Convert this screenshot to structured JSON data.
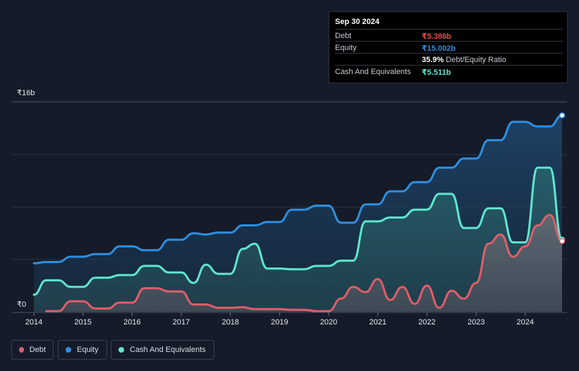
{
  "tooltip": {
    "date": "Sep 30 2024",
    "debt_label": "Debt",
    "debt_value": "₹5.386b",
    "equity_label": "Equity",
    "equity_value": "₹15.002b",
    "ratio_value": "35.9%",
    "ratio_label": "Debt/Equity Ratio",
    "cash_label": "Cash And Equivalents",
    "cash_value": "₹5.511b"
  },
  "legend": {
    "debt": "Debt",
    "equity": "Equity",
    "cash": "Cash And Equivalents"
  },
  "colors": {
    "debt": "#e05d6a",
    "equity": "#2e8fe0",
    "cash": "#5ee6cf",
    "debt_value_text": "#e84c4c",
    "equity_value_text": "#2e8fe0",
    "cash_value_text": "#5ee6cf"
  },
  "chart_data": {
    "type": "area",
    "ylabel_top": "₹16b",
    "ylabel_bottom": "₹0",
    "ylim": [
      0,
      16
    ],
    "xlim": [
      2014.0,
      2024.85
    ],
    "x_ticks": [
      "2014",
      "2015",
      "2016",
      "2017",
      "2018",
      "2019",
      "2020",
      "2021",
      "2022",
      "2023",
      "2024"
    ],
    "series": [
      {
        "name": "Equity",
        "x": [
          2014.0,
          2014.25,
          2014.5,
          2014.75,
          2015.0,
          2015.25,
          2015.5,
          2015.75,
          2016.0,
          2016.25,
          2016.5,
          2016.75,
          2017.0,
          2017.25,
          2017.5,
          2017.75,
          2018.0,
          2018.25,
          2018.5,
          2018.75,
          2019.0,
          2019.25,
          2019.5,
          2019.75,
          2020.0,
          2020.25,
          2020.5,
          2020.75,
          2021.0,
          2021.25,
          2021.5,
          2021.75,
          2022.0,
          2022.25,
          2022.5,
          2022.75,
          2023.0,
          2023.25,
          2023.5,
          2023.75,
          2024.0,
          2024.25,
          2024.5,
          2024.75
        ],
        "values": [
          3.7,
          3.8,
          3.8,
          4.2,
          4.2,
          4.4,
          4.4,
          5.0,
          5.0,
          4.7,
          4.7,
          5.5,
          5.5,
          6.0,
          5.9,
          6.05,
          6.05,
          6.6,
          6.6,
          6.85,
          6.85,
          7.8,
          7.8,
          8.1,
          8.1,
          6.8,
          6.8,
          8.2,
          8.2,
          9.2,
          9.2,
          9.9,
          9.9,
          11.0,
          11.0,
          11.7,
          11.7,
          13.1,
          13.1,
          14.5,
          14.5,
          14.15,
          14.15,
          15.0
        ]
      },
      {
        "name": "Cash And Equivalents",
        "x": [
          2014.0,
          2014.25,
          2014.5,
          2014.75,
          2015.0,
          2015.25,
          2015.5,
          2015.75,
          2016.0,
          2016.25,
          2016.5,
          2016.75,
          2017.0,
          2017.25,
          2017.5,
          2017.75,
          2018.0,
          2018.25,
          2018.5,
          2018.75,
          2019.0,
          2019.25,
          2019.5,
          2019.75,
          2020.0,
          2020.25,
          2020.5,
          2020.75,
          2021.0,
          2021.25,
          2021.5,
          2021.75,
          2022.0,
          2022.25,
          2022.5,
          2022.75,
          2023.0,
          2023.25,
          2023.5,
          2023.75,
          2024.0,
          2024.25,
          2024.5,
          2024.75
        ],
        "values": [
          1.3,
          2.4,
          2.4,
          1.9,
          1.9,
          2.6,
          2.6,
          2.8,
          2.8,
          3.5,
          3.5,
          3.0,
          3.0,
          2.2,
          3.6,
          2.9,
          2.9,
          4.8,
          5.2,
          3.3,
          3.3,
          3.25,
          3.25,
          3.5,
          3.5,
          3.9,
          3.9,
          6.9,
          6.9,
          7.2,
          7.2,
          7.8,
          7.8,
          9.0,
          9.0,
          6.4,
          6.4,
          7.9,
          7.9,
          5.3,
          5.3,
          11.0,
          11.0,
          5.5
        ]
      },
      {
        "name": "Debt",
        "x": [
          2014.25,
          2014.5,
          2014.75,
          2015.0,
          2015.25,
          2015.5,
          2015.75,
          2016.0,
          2016.25,
          2016.5,
          2016.75,
          2017.0,
          2017.25,
          2017.5,
          2017.75,
          2018.0,
          2018.25,
          2018.5,
          2018.75,
          2019.0,
          2019.25,
          2019.5,
          2019.75,
          2020.0,
          2020.25,
          2020.5,
          2020.75,
          2021.0,
          2021.25,
          2021.5,
          2021.75,
          2022.0,
          2022.25,
          2022.5,
          2022.75,
          2023.0,
          2023.25,
          2023.5,
          2023.75,
          2024.0,
          2024.25,
          2024.5,
          2024.75
        ],
        "values": [
          0.05,
          0.05,
          0.8,
          0.8,
          0.25,
          0.25,
          0.7,
          0.7,
          1.8,
          1.8,
          1.55,
          1.55,
          0.55,
          0.55,
          0.3,
          0.3,
          0.35,
          0.2,
          0.2,
          0.2,
          0.15,
          0.15,
          0.05,
          0.05,
          1.0,
          1.9,
          1.5,
          2.5,
          0.9,
          1.9,
          0.6,
          2.0,
          0.3,
          1.6,
          1.0,
          2.2,
          5.2,
          5.9,
          4.2,
          5.0,
          6.6,
          7.4,
          5.4
        ]
      }
    ]
  }
}
